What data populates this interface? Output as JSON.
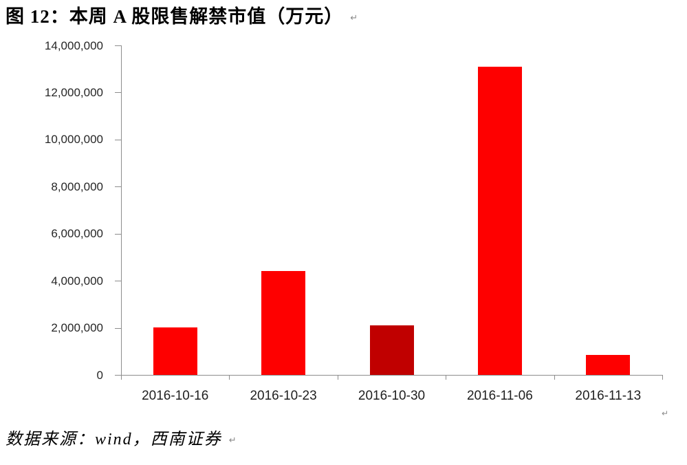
{
  "figure": {
    "label": "图 12：",
    "title": "本周 A 股限售解禁市值（万元）",
    "source_note": "数据来源：wind，西南证券",
    "paragraph_mark": "↵"
  },
  "chart_data": {
    "type": "bar",
    "title": "本周 A 股限售解禁市值（万元）",
    "categories": [
      "2016-10-16",
      "2016-10-23",
      "2016-10-30",
      "2016-11-06",
      "2016-11-13"
    ],
    "values": [
      2020000,
      4410000,
      2100000,
      13100000,
      850000
    ],
    "bar_colors": [
      "#FE0000",
      "#FE0000",
      "#C00000",
      "#FE0000",
      "#FE0000"
    ],
    "ylim": [
      0,
      14000000
    ],
    "ytick_interval": 2000000,
    "ytick_labels": [
      "0",
      "2,000,000",
      "4,000,000",
      "6,000,000",
      "8,000,000",
      "10,000,000",
      "12,000,000",
      "14,000,000"
    ],
    "xlabel": "",
    "ylabel": "",
    "grid": false,
    "legend": "none"
  },
  "colors": {
    "bar_red": "#FE0000",
    "bar_dark_red": "#C00000",
    "rule_gold": "#C2964E",
    "axis_gray": "#8C8C8C",
    "label_text": "#262626"
  }
}
